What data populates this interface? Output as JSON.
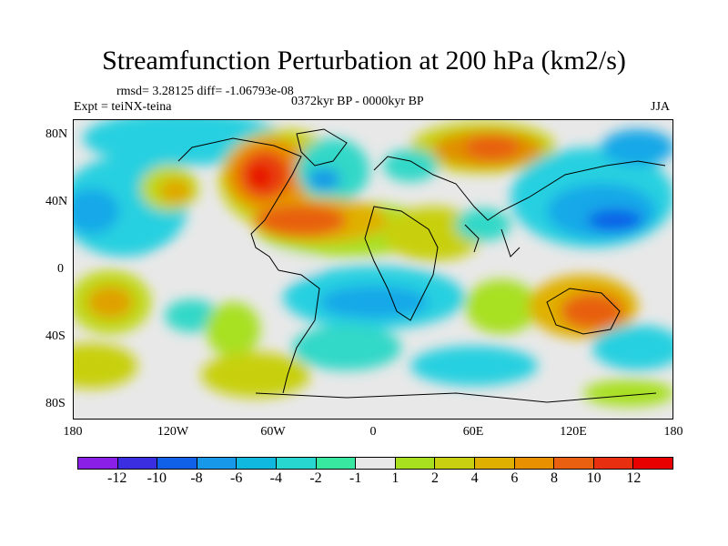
{
  "title": "Streamfunction Perturbation at 200 hPa (km2/s)",
  "stats_line": "rmsd= 3.28125  diff= -1.06793e-08",
  "expt_label": "Expt = teiNX-teina",
  "period_label": "0372kyr BP - 0000kyr BP",
  "season": "JJA",
  "lat_ticks": [
    "80N",
    "40N",
    "0",
    "40S",
    "80S"
  ],
  "lon_ticks": [
    "180",
    "120W",
    "60W",
    "0",
    "60E",
    "120E",
    "180"
  ],
  "colorbar": {
    "labels": [
      "-12",
      "-10",
      "-8",
      "-6",
      "-4",
      "-2",
      "-1",
      "1",
      "2",
      "4",
      "6",
      "8",
      "10",
      "12"
    ],
    "colors": [
      "#8a20e8",
      "#3a2ee0",
      "#1060e8",
      "#1898e8",
      "#10b8e0",
      "#28d8d0",
      "#38e8a0",
      "#e8e8e8",
      "#a8e020",
      "#c8d010",
      "#e0b000",
      "#e89000",
      "#e86010",
      "#e83010",
      "#e80000"
    ]
  }
}
